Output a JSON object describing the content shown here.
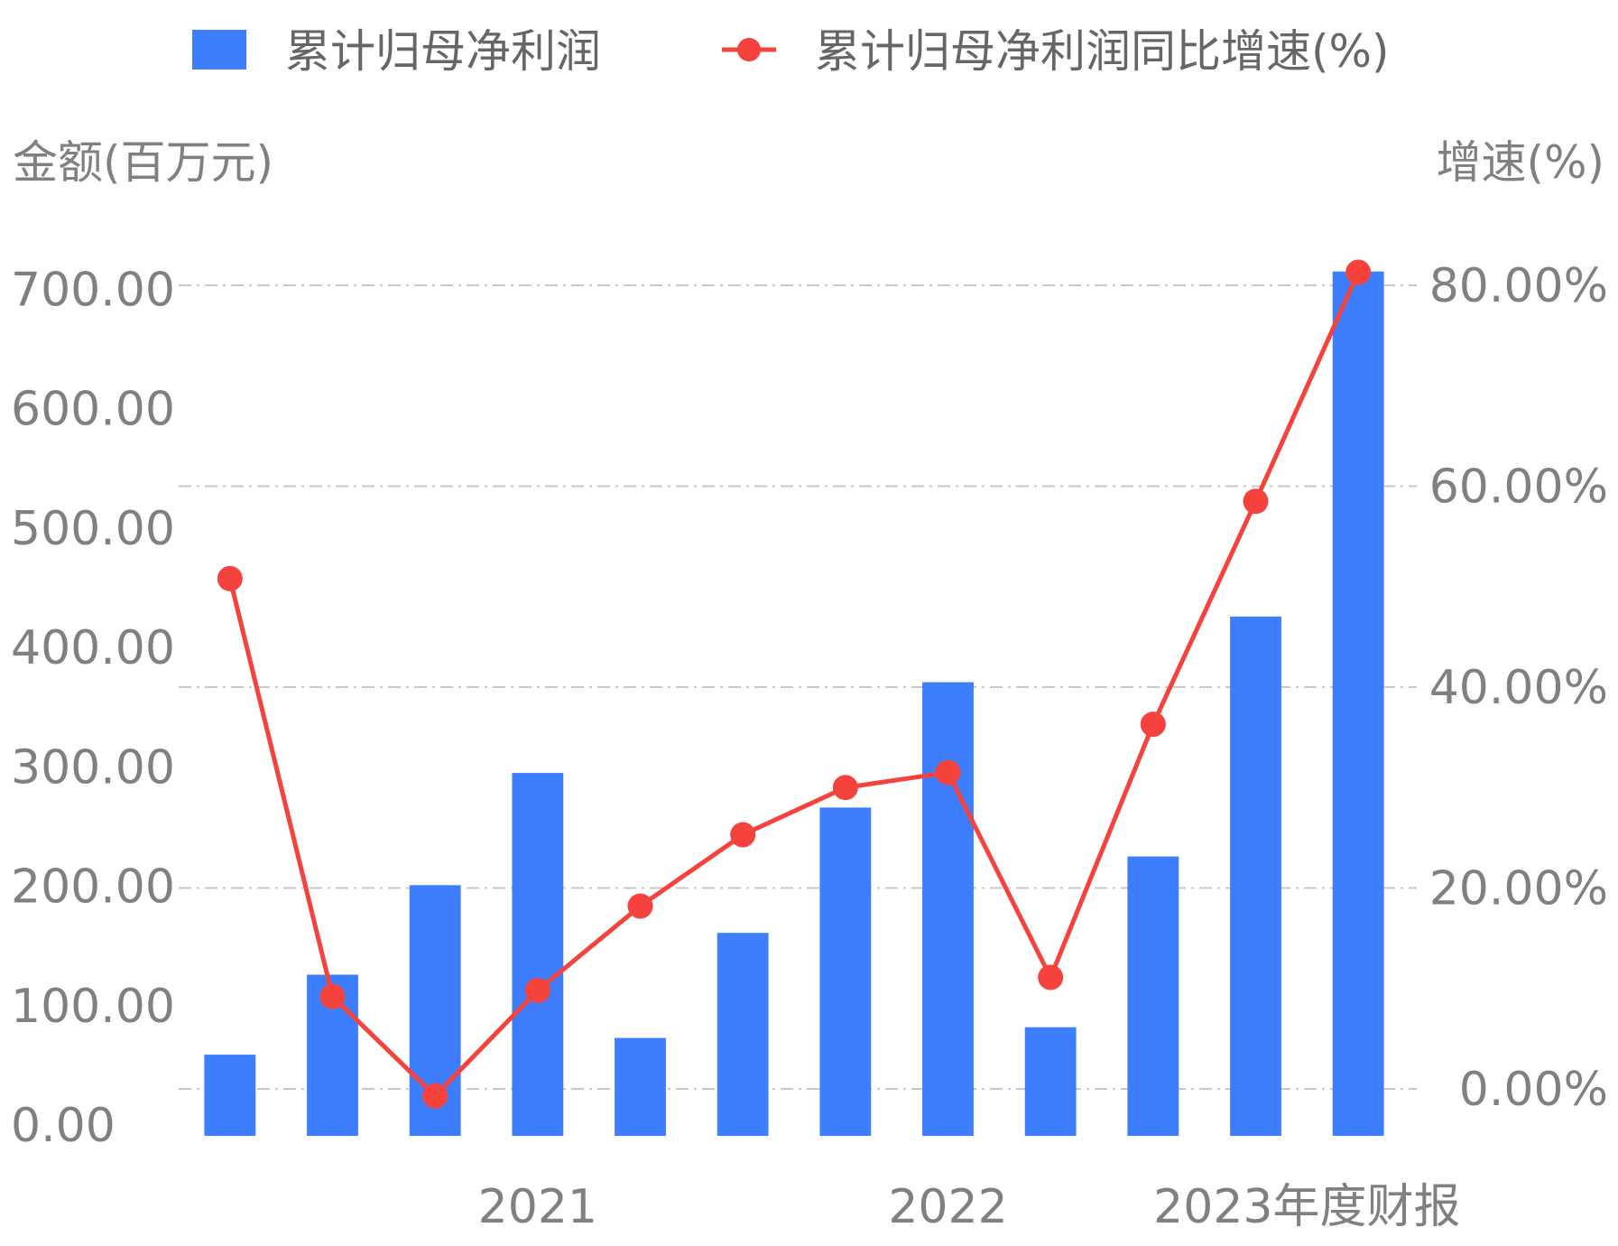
{
  "chart_data": {
    "type": "bar",
    "y_left_title": "金额(百万元)",
    "y_right_title": "增速(%)",
    "y_left_ticks": [
      "0.00",
      "100.00",
      "200.00",
      "300.00",
      "400.00",
      "500.00",
      "600.00",
      "700.00"
    ],
    "y_right_ticks": [
      "0.00%",
      "20.00%",
      "40.00%",
      "60.00%",
      "80.00%"
    ],
    "x_tick_labels": [
      {
        "label": "2021",
        "index": 3
      },
      {
        "label": "2022",
        "index": 7
      },
      {
        "label": "2023年度财报",
        "index": 10.5
      }
    ],
    "ylim_left": [
      0,
      720
    ],
    "ylim_right": [
      -4.7,
      80.6
    ],
    "series": [
      {
        "name": "累计归母净利润",
        "kind": "bar",
        "color": "#3d7eff",
        "values": [
          68,
          135,
          210,
          304,
          82,
          170,
          275,
          380,
          91,
          234,
          435,
          724
        ]
      },
      {
        "name": "累计归母净利润同比增速(%)",
        "kind": "line",
        "color": "#f5423d",
        "values": [
          50.8,
          9.2,
          -0.7,
          9.8,
          18.2,
          25.3,
          30.0,
          31.5,
          11.1,
          36.3,
          58.5,
          81.3
        ]
      }
    ]
  }
}
